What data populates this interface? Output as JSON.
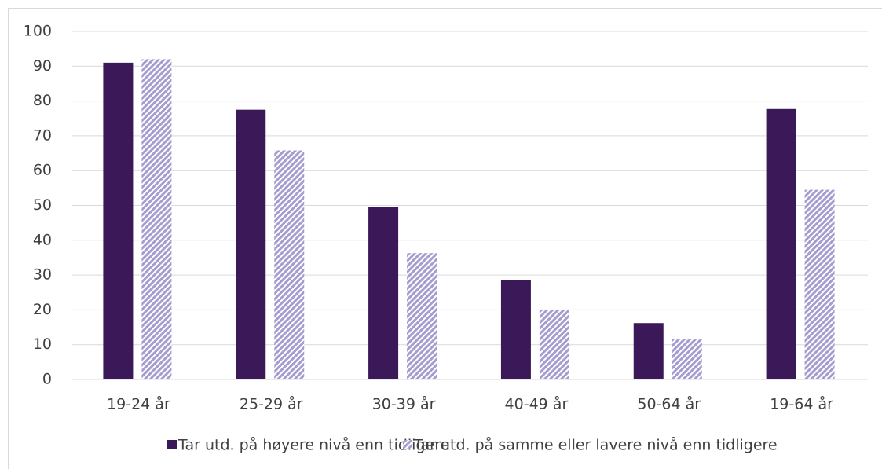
{
  "chart_data": {
    "type": "bar",
    "categories": [
      "19-24 år",
      "25-29 år",
      "30-39 år",
      "40-49 år",
      "50-64 år",
      "19-64 år"
    ],
    "series": [
      {
        "name": "Tar utd. på høyere nivå enn tidligere",
        "color": "#3b1858",
        "values": [
          91,
          77.5,
          49.5,
          28.5,
          16.2,
          77.7
        ]
      },
      {
        "name": "Tar utd. på samme eller lavere nivå enn tidligere",
        "color": "#a59ccf",
        "values": [
          92,
          65.8,
          36.3,
          20,
          11.5,
          54.5
        ]
      }
    ],
    "ylim": [
      0,
      100
    ],
    "yticks": [
      0,
      10,
      20,
      30,
      40,
      50,
      60,
      70,
      80,
      90,
      100
    ],
    "grid": true
  }
}
